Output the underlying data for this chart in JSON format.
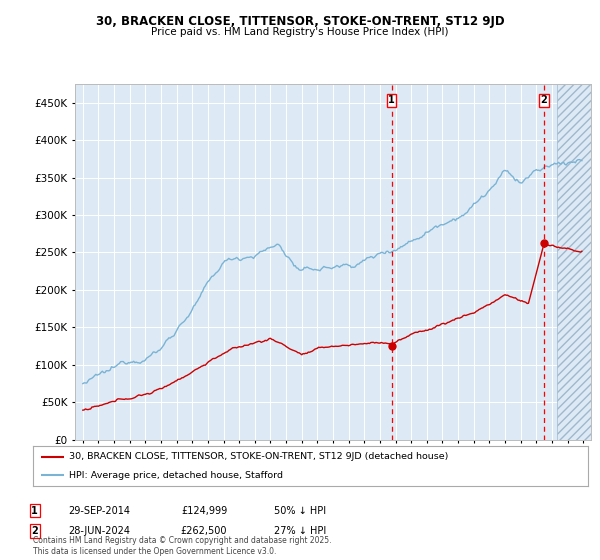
{
  "title1": "30, BRACKEN CLOSE, TITTENSOR, STOKE-ON-TRENT, ST12 9JD",
  "title2": "Price paid vs. HM Land Registry's House Price Index (HPI)",
  "legend_line1": "30, BRACKEN CLOSE, TITTENSOR, STOKE-ON-TRENT, ST12 9JD (detached house)",
  "legend_line2": "HPI: Average price, detached house, Stafford",
  "marker1_date": "29-SEP-2014",
  "marker1_price": "£124,999",
  "marker1_info": "50% ↓ HPI",
  "marker1_x": 2014.75,
  "marker1_y_price": 124999,
  "marker2_date": "28-JUN-2024",
  "marker2_price": "£262,500",
  "marker2_info": "27% ↓ HPI",
  "marker2_x": 2024.5,
  "marker2_y_price": 262500,
  "footer": "Contains HM Land Registry data © Crown copyright and database right 2025.\nThis data is licensed under the Open Government Licence v3.0.",
  "hpi_color": "#7ab3d4",
  "price_color": "#cc0000",
  "bg_color": "#ddeaf5",
  "ylim": [
    0,
    475000
  ],
  "xlim": [
    1994.5,
    2027.5
  ]
}
